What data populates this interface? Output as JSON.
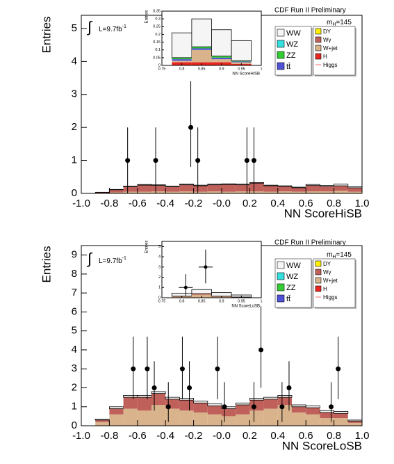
{
  "chart_data": [
    {
      "type": "histogram",
      "header": "CDF Run II Preliminary",
      "mass": {
        "prefix": "m",
        "sub": "H",
        "suffix": "=145"
      },
      "integral": "∫",
      "lumi": {
        "text": "L=9.7fb",
        "sup": "-1"
      },
      "xlabel": "NN ScoreHiSB",
      "ylabel": "Entries",
      "xlim": [
        -1,
        1
      ],
      "ylim": [
        0,
        5.4
      ],
      "xticks": [
        {
          "value": -1,
          "label": "-1.0"
        },
        -0.8,
        -0.6,
        -0.4,
        -0.2,
        {
          "value": 0,
          "label": "-0.0"
        },
        0.2,
        0.4,
        0.6,
        0.8,
        {
          "value": 1,
          "label": "1.0"
        }
      ],
      "yticks": [
        0,
        1,
        2,
        3,
        4,
        5
      ],
      "bins": [
        -1,
        -0.9,
        -0.8,
        -0.7,
        -0.6,
        -0.5,
        -0.4,
        -0.3,
        -0.2,
        -0.1,
        0,
        0.1,
        0.2,
        0.3,
        0.4,
        0.5,
        0.6,
        0.7,
        0.8,
        0.9,
        1
      ],
      "series": [
        {
          "name": "WW",
          "color": "#f5f5f5",
          "values": [
            0,
            0.005,
            0.01,
            0.02,
            0.02,
            0.02,
            0.02,
            0.02,
            0.02,
            0.02,
            0.02,
            0.02,
            0.02,
            0.02,
            0.02,
            0.02,
            0.03,
            0.03,
            0.05,
            0.03
          ]
        },
        {
          "name": "WZ",
          "color": "#33e0e0",
          "values": [
            0,
            0,
            0,
            0,
            0,
            0,
            0,
            0,
            0,
            0,
            0,
            0,
            0,
            0,
            0,
            0,
            0,
            0,
            0,
            0
          ]
        },
        {
          "name": "ZZ",
          "color": "#33cc33",
          "values": [
            0,
            0,
            0,
            0,
            0,
            0,
            0,
            0,
            0,
            0,
            0,
            0,
            0,
            0,
            0,
            0,
            0,
            0,
            0,
            0
          ]
        },
        {
          "name": "tt̄",
          "color": "#5050d8",
          "values": [
            0,
            0,
            0,
            0,
            0,
            0,
            0,
            0,
            0,
            0,
            0,
            0,
            0,
            0,
            0,
            0,
            0,
            0,
            0,
            0
          ]
        },
        {
          "name": "DY",
          "color": "#ffee00",
          "values": [
            0,
            0,
            0,
            0,
            0,
            0,
            0,
            0,
            0,
            0,
            0,
            0,
            0,
            0,
            0,
            0,
            0,
            0,
            0,
            0
          ]
        },
        {
          "name": "Wγ",
          "color": "#c0605a",
          "values": [
            0,
            0.02,
            0.08,
            0.15,
            0.2,
            0.18,
            0.15,
            0.2,
            0.18,
            0.2,
            0.22,
            0.2,
            0.25,
            0.18,
            0.15,
            0.12,
            0.18,
            0.15,
            0.15,
            0.12
          ]
        },
        {
          "name": "W+jet",
          "color": "#d9b38c",
          "values": [
            0,
            0.01,
            0.03,
            0.05,
            0.05,
            0.06,
            0.05,
            0.06,
            0.05,
            0.06,
            0.05,
            0.06,
            0.06,
            0.05,
            0.06,
            0.05,
            0.06,
            0.06,
            0.08,
            0.05
          ]
        },
        {
          "name": "H",
          "color": "#e8261f",
          "values": [
            0,
            0,
            0,
            0,
            0,
            0,
            0,
            0,
            0,
            0,
            0,
            0,
            0,
            0,
            0,
            0,
            0,
            0,
            0,
            0
          ]
        },
        {
          "name": "Higgs",
          "color": "#ff6666",
          "style": "line",
          "values": [
            0,
            0,
            0,
            0,
            0,
            0,
            0,
            0,
            0,
            0,
            0,
            0,
            0,
            0,
            0,
            0,
            0,
            0,
            0,
            0
          ]
        }
      ],
      "points": {
        "x": [
          -0.67,
          -0.47,
          -0.22,
          -0.17,
          0.18,
          0.23
        ],
        "values": [
          1,
          1,
          2,
          1,
          1,
          1
        ],
        "err_low": [
          1,
          1,
          1.2,
          1,
          1,
          1
        ],
        "err_high": [
          1,
          1,
          1.4,
          1,
          1,
          1
        ]
      }
    },
    {
      "type": "histogram",
      "xlabel": "NN ScoreHiSB",
      "ylabel": "Entries",
      "xlim": [
        0.75,
        1
      ],
      "ylim": [
        0,
        0.35
      ],
      "xticks": [
        0.75,
        0.8,
        0.85,
        0.9,
        0.95,
        1
      ],
      "yticks": [
        0,
        0.05,
        0.1,
        0.15,
        0.2,
        0.25,
        0.3,
        0.35
      ],
      "bins": [
        0.775,
        0.825,
        0.875,
        0.925,
        0.975
      ],
      "series": [
        {
          "color": "#f5f5f5",
          "values": [
            0.16,
            0.18,
            0.17,
            0.13
          ]
        },
        {
          "color": "#33cc33",
          "values": [
            0.01,
            0.01,
            0.01,
            0.005
          ]
        },
        {
          "color": "#5050d8",
          "values": [
            0.01,
            0.01,
            0.01,
            0.005
          ]
        },
        {
          "color": "#d9b38c",
          "values": [
            0.01,
            0.08,
            0.02,
            0.01
          ]
        },
        {
          "color": "#e8261f",
          "values": [
            0.02,
            0.02,
            0.02,
            0.01
          ]
        }
      ]
    },
    {
      "type": "histogram",
      "header": "CDF Run II Preliminary",
      "mass": {
        "prefix": "m",
        "sub": "H",
        "suffix": "=145"
      },
      "integral": "∫",
      "lumi": {
        "text": "L=9.7fb",
        "sup": "-1"
      },
      "xlabel": "NN ScoreLoSB",
      "ylabel": "Entries",
      "xlim": [
        -1,
        1
      ],
      "ylim": [
        0,
        9.5
      ],
      "xticks": [
        {
          "value": -1,
          "label": "-1.0"
        },
        -0.8,
        -0.6,
        -0.4,
        -0.2,
        {
          "value": 0,
          "label": "-0.0"
        },
        0.2,
        0.4,
        0.6,
        0.8,
        {
          "value": 1,
          "label": "1.0"
        }
      ],
      "yticks": [
        0,
        1,
        2,
        3,
        4,
        5,
        6,
        7,
        8,
        9
      ],
      "bins": [
        -1,
        -0.9,
        -0.8,
        -0.7,
        -0.6,
        -0.5,
        -0.4,
        -0.3,
        -0.2,
        -0.1,
        0,
        0.1,
        0.2,
        0.3,
        0.4,
        0.5,
        0.6,
        0.7,
        0.8,
        0.9,
        1
      ],
      "series": [
        {
          "name": "WW",
          "color": "#f5f5f5",
          "values": [
            0,
            0.05,
            0.1,
            0.1,
            0.1,
            0.1,
            0.1,
            0.1,
            0.1,
            0.1,
            0.1,
            0.1,
            0.1,
            0.1,
            0.1,
            0.1,
            0.1,
            0.1,
            0.1,
            0.05
          ]
        },
        {
          "name": "WZ",
          "color": "#33e0e0",
          "values": [
            0,
            0,
            0,
            0,
            0,
            0,
            0,
            0,
            0,
            0,
            0,
            0,
            0,
            0,
            0,
            0,
            0,
            0,
            0,
            0
          ]
        },
        {
          "name": "ZZ",
          "color": "#33cc33",
          "values": [
            0,
            0,
            0,
            0,
            0,
            0,
            0,
            0,
            0,
            0,
            0,
            0,
            0,
            0,
            0,
            0,
            0,
            0,
            0,
            0
          ]
        },
        {
          "name": "tt̄",
          "color": "#5050d8",
          "values": [
            0,
            0,
            0,
            0,
            0,
            0,
            0,
            0,
            0,
            0,
            0,
            0,
            0,
            0,
            0,
            0,
            0,
            0,
            0,
            0
          ]
        },
        {
          "name": "DY",
          "color": "#ffee00",
          "values": [
            0,
            0,
            0,
            0,
            0,
            0,
            0,
            0,
            0,
            0,
            0,
            0,
            0,
            0,
            0,
            0,
            0,
            0,
            0,
            0
          ]
        },
        {
          "name": "Wγ",
          "color": "#c0605a",
          "values": [
            0,
            0.1,
            0.3,
            0.6,
            0.7,
            0.6,
            0.5,
            0.55,
            0.5,
            0.45,
            0.4,
            0.5,
            0.55,
            0.5,
            0.4,
            0.3,
            0.35,
            0.3,
            0.25,
            0.1
          ]
        },
        {
          "name": "W+jet",
          "color": "#d9b38c",
          "values": [
            0,
            0.2,
            0.6,
            0.9,
            0.8,
            1.1,
            0.9,
            0.8,
            0.7,
            0.6,
            0.5,
            0.6,
            0.8,
            0.9,
            1.1,
            0.7,
            0.6,
            0.4,
            0.4,
            0.15
          ]
        },
        {
          "name": "H",
          "color": "#e8261f",
          "values": [
            0,
            0,
            0,
            0,
            0,
            0,
            0,
            0,
            0,
            0,
            0,
            0,
            0,
            0,
            0,
            0,
            0,
            0,
            0,
            0
          ]
        },
        {
          "name": "Higgs",
          "color": "#ff6666",
          "style": "line",
          "values": [
            0,
            0,
            0,
            0,
            0,
            0,
            0,
            0,
            0,
            0,
            0,
            0,
            0,
            0,
            0,
            0,
            0,
            0,
            0,
            0
          ]
        }
      ],
      "points": {
        "x": [
          -0.63,
          -0.53,
          -0.48,
          -0.38,
          -0.28,
          -0.23,
          -0.03,
          0.02,
          0.23,
          0.28,
          0.43,
          0.48,
          0.78,
          0.83
        ],
        "values": [
          3,
          3,
          2,
          1,
          3,
          2,
          3,
          1,
          1,
          4,
          1,
          2,
          1,
          3
        ],
        "err_low": [
          1.6,
          1.6,
          1.2,
          0.8,
          1.6,
          1.2,
          1.6,
          0.8,
          0.8,
          2,
          0.8,
          1.2,
          0.8,
          1.6
        ],
        "err_high": [
          1.7,
          1.7,
          1.4,
          1.3,
          1.7,
          1.4,
          1.7,
          1.3,
          1.3,
          2.3,
          1.3,
          1.4,
          1.3,
          1.7
        ]
      }
    },
    {
      "type": "histogram",
      "xlabel": "NN ScoreLoSB",
      "ylabel": "Entries",
      "xlim": [
        0.75,
        1
      ],
      "ylim": [
        0,
        5.5
      ],
      "xticks": [
        0.75,
        0.8,
        0.85,
        0.9,
        0.95,
        1
      ],
      "yticks": [
        0,
        1,
        2,
        3,
        4,
        5
      ],
      "bins": [
        0.775,
        0.825,
        0.875,
        0.925,
        0.975
      ],
      "series": [
        {
          "color": "#f5f5f5",
          "values": [
            0.3,
            0.4,
            0.35,
            0.2
          ]
        },
        {
          "color": "#c0605a",
          "values": [
            0.05,
            0.1,
            0.05,
            0.02
          ]
        },
        {
          "color": "#d9b38c",
          "values": [
            0.1,
            0.3,
            0.1,
            0.05
          ]
        }
      ],
      "points": {
        "x": [
          0.81,
          0.86
        ],
        "values": [
          1,
          3
        ],
        "err_low": [
          0.8,
          1.6
        ],
        "err_high": [
          1.3,
          1.7
        ]
      }
    }
  ]
}
